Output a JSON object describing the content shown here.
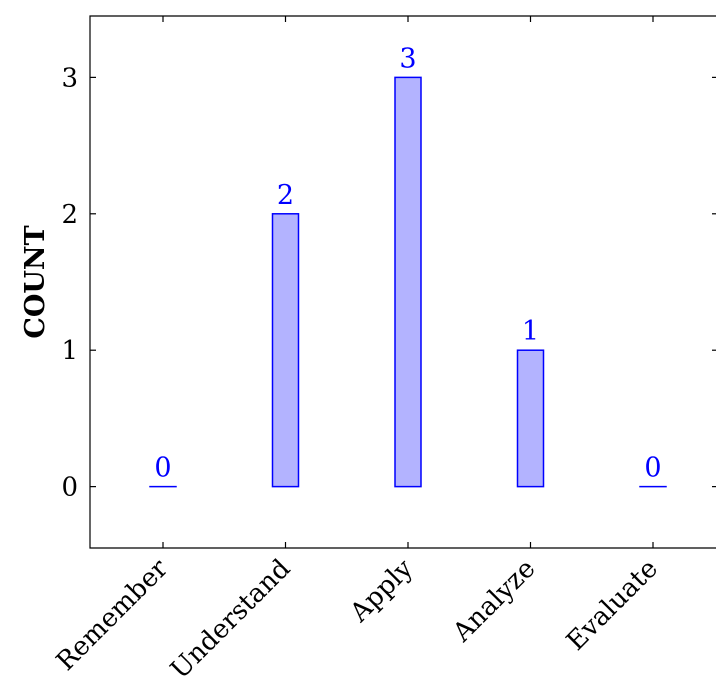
{
  "chart_data": {
    "type": "bar",
    "categories": [
      "Remember",
      "Understand",
      "Apply",
      "Analyze",
      "Evaluate"
    ],
    "values": [
      0,
      2,
      3,
      1,
      0
    ],
    "title": "",
    "xlabel": "",
    "ylabel": "COUNT",
    "ylim": [
      -0.45,
      3.45
    ],
    "yticks": [
      "0",
      "1",
      "2",
      "3"
    ],
    "data_labels": [
      "0",
      "2",
      "3",
      "1",
      "0"
    ],
    "grid": false,
    "colors": {
      "bar_fill": "#b3b3ff",
      "bar_stroke": "#0000ff",
      "label": "#0000ff"
    }
  }
}
